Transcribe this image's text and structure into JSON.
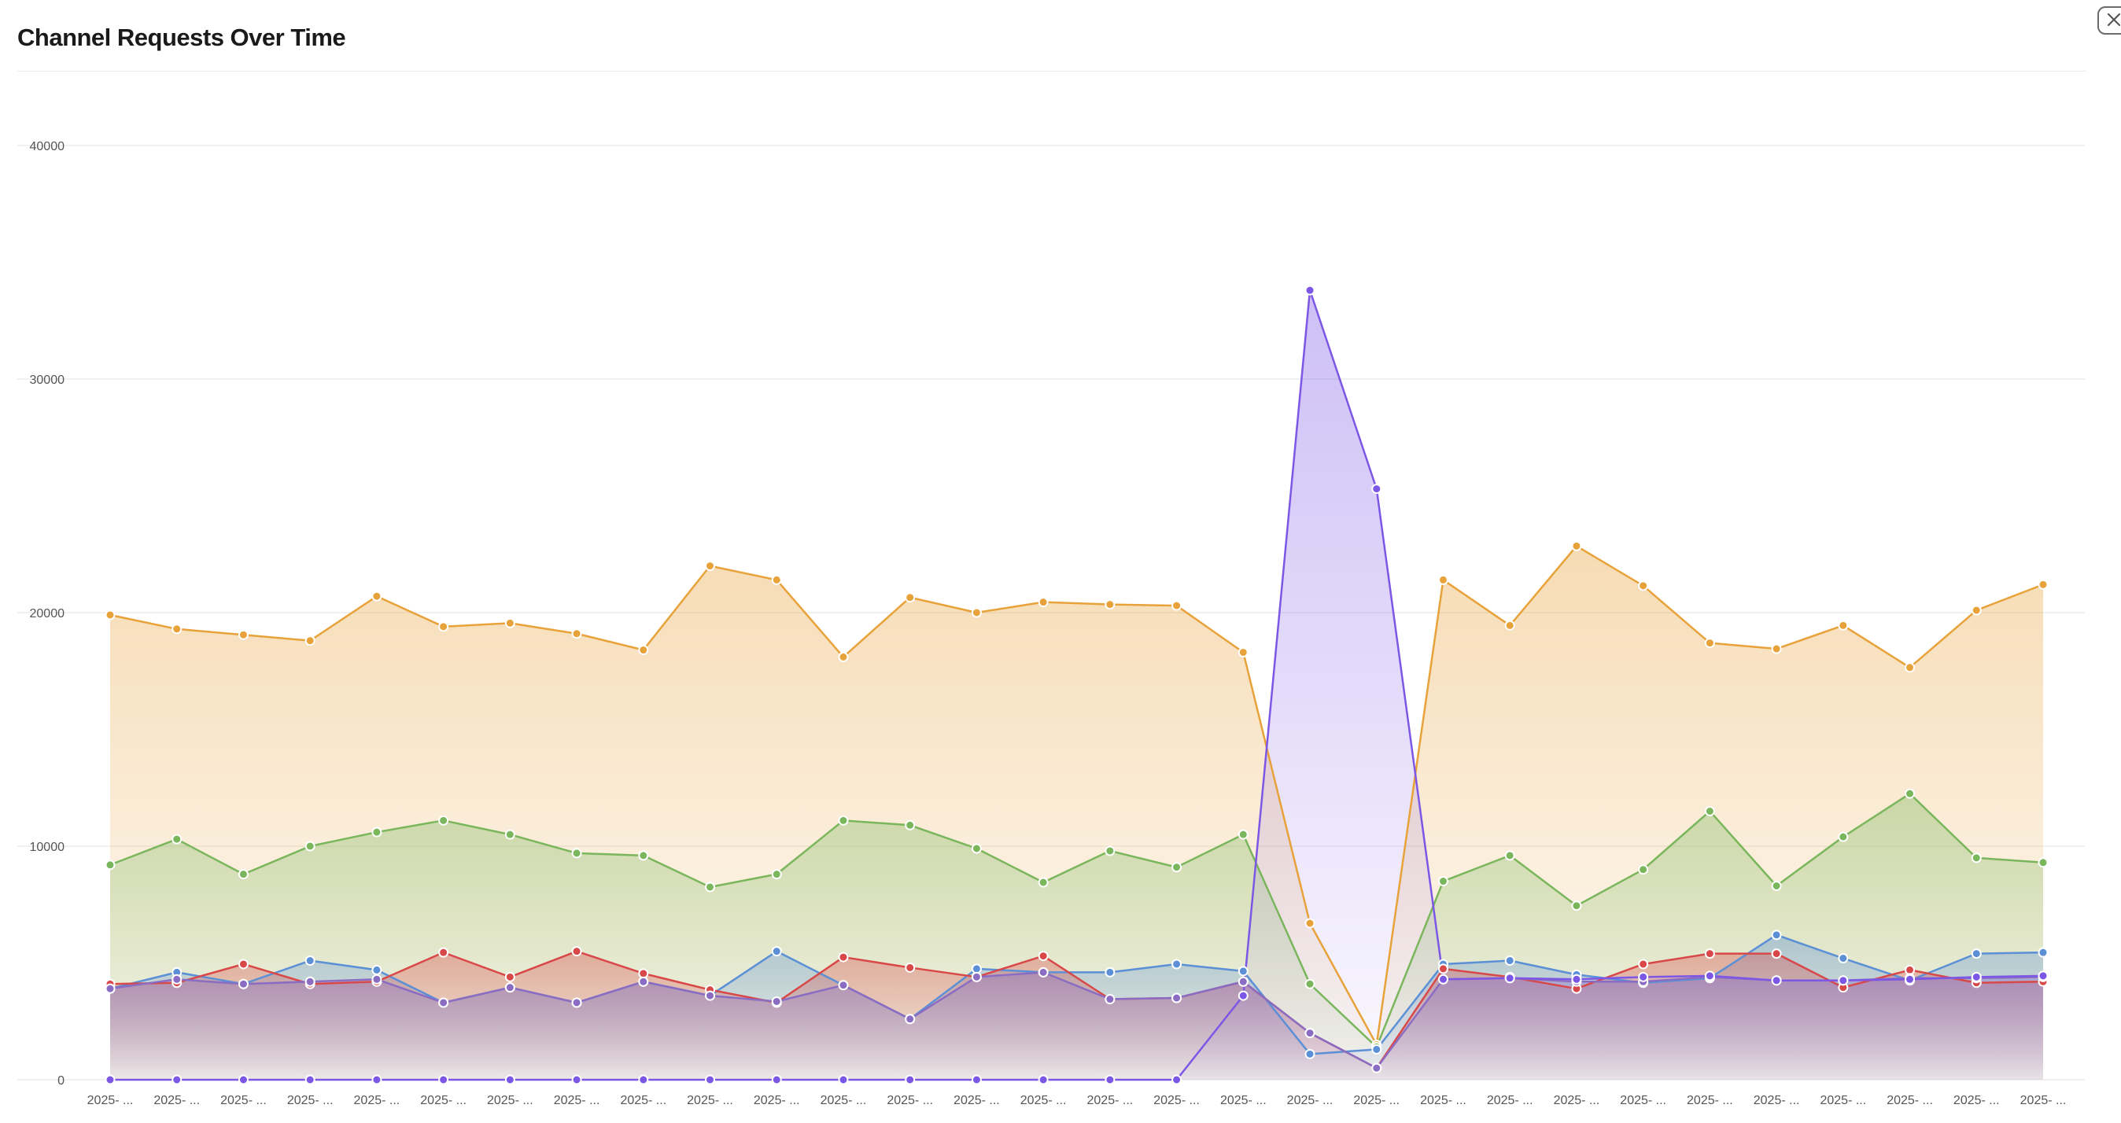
{
  "page": {
    "title": "Channel Requests Over Time"
  },
  "chart_data": {
    "type": "area",
    "title": "Channel Requests Over Time",
    "xlabel": "",
    "ylabel": "",
    "ylim": [
      0,
      40000
    ],
    "yticks": [
      0,
      10000,
      20000,
      30000,
      40000
    ],
    "grid": true,
    "legend": "none",
    "categories": [
      "2025- ...",
      "2025- ...",
      "2025- ...",
      "2025- ...",
      "2025- ...",
      "2025- ...",
      "2025- ...",
      "2025- ...",
      "2025- ...",
      "2025- ...",
      "2025- ...",
      "2025- ...",
      "2025- ...",
      "2025- ...",
      "2025- ...",
      "2025- ...",
      "2025- ...",
      "2025- ...",
      "2025- ...",
      "2025- ...",
      "2025- ...",
      "2025- ...",
      "2025- ...",
      "2025- ...",
      "2025- ...",
      "2025- ...",
      "2025- ...",
      "2025- ...",
      "2025- ...",
      "2025- ..."
    ],
    "series": [
      {
        "color": "#e8a23a",
        "values": [
          19900,
          19300,
          19050,
          18800,
          20700,
          19400,
          19550,
          19100,
          18400,
          22000,
          21400,
          18100,
          20650,
          20000,
          20450,
          20350,
          20300,
          18300,
          6700,
          1500,
          21400,
          19450,
          22850,
          21150,
          18700,
          18450,
          19450,
          17650,
          20100,
          21200
        ]
      },
      {
        "color": "#7ab65c",
        "values": [
          9200,
          10300,
          8800,
          10000,
          10600,
          11100,
          10500,
          9700,
          9600,
          8250,
          8800,
          11100,
          10900,
          9900,
          8450,
          9800,
          9100,
          10500,
          4100,
          1400,
          8500,
          9600,
          7450,
          9000,
          11500,
          8300,
          10400,
          12250,
          9500,
          9300
        ]
      },
      {
        "color": "#5b8fd6",
        "values": [
          3900,
          4600,
          4100,
          5100,
          4700,
          3300,
          3950,
          3300,
          4200,
          3600,
          5500,
          4050,
          2600,
          4750,
          4600,
          4600,
          4950,
          4650,
          1100,
          1300,
          4950,
          5100,
          4500,
          4150,
          4350,
          6200,
          5200,
          4250,
          5400,
          5450
        ]
      },
      {
        "color": "#d94848",
        "values": [
          4100,
          4150,
          4950,
          4100,
          4200,
          5450,
          4400,
          5500,
          4550,
          3850,
          3300,
          5250,
          4800,
          4400,
          5300,
          3450,
          3500,
          4200,
          2000,
          500,
          4750,
          4400,
          3900,
          4950,
          5400,
          5400,
          3950,
          4700,
          4150,
          4200
        ]
      },
      {
        "color": "#8a6cc2",
        "values": [
          3900,
          4300,
          4100,
          4200,
          4300,
          3300,
          3950,
          3300,
          4200,
          3600,
          3350,
          4050,
          2600,
          4400,
          4600,
          3450,
          3500,
          4200,
          2000,
          500,
          4300,
          4350,
          4200,
          4200,
          4400,
          4250,
          4250,
          4350,
          4350,
          4400
        ]
      },
      {
        "color": "#7c57e6",
        "values": [
          0,
          0,
          0,
          0,
          0,
          0,
          0,
          0,
          0,
          0,
          0,
          0,
          0,
          0,
          0,
          0,
          0,
          3600,
          33800,
          25300,
          4300,
          4350,
          4300,
          4400,
          4450,
          4250,
          4250,
          4300,
          4400,
          4450
        ]
      }
    ]
  }
}
